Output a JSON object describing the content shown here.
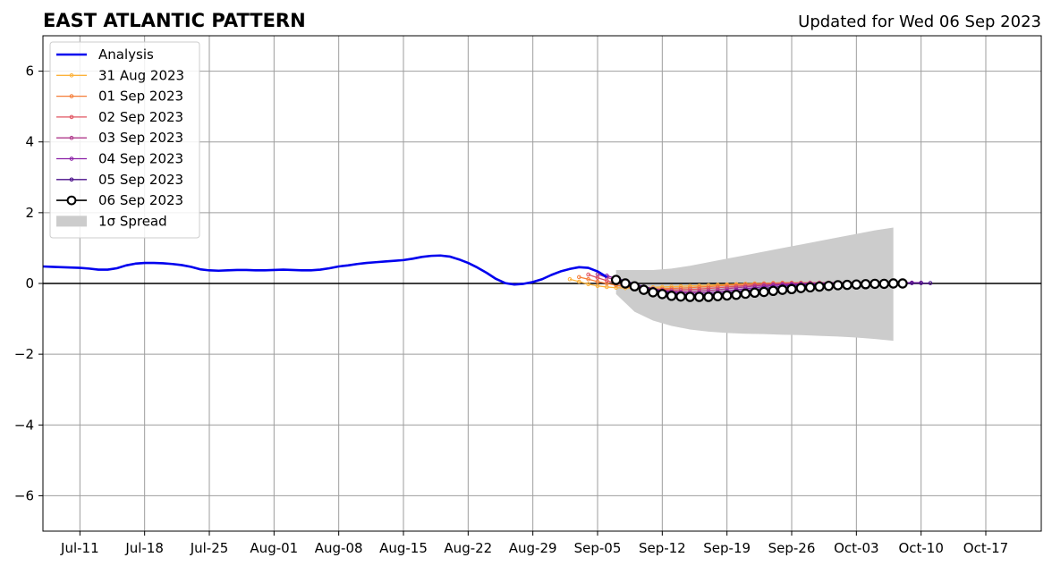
{
  "chart_data": {
    "type": "line",
    "title": "EAST ATLANTIC PATTERN",
    "subtitle": "Updated for Wed 06 Sep 2023",
    "xlabel": "",
    "ylabel": "",
    "x_unit": "date",
    "xlim": [
      "2023-07-07",
      "2023-10-23"
    ],
    "ylim": [
      -7,
      7
    ],
    "x_ticks": [
      "2023-07-11",
      "2023-07-18",
      "2023-07-25",
      "2023-08-01",
      "2023-08-08",
      "2023-08-15",
      "2023-08-22",
      "2023-08-29",
      "2023-09-05",
      "2023-09-12",
      "2023-09-19",
      "2023-09-26",
      "2023-10-03",
      "2023-10-10",
      "2023-10-17"
    ],
    "x_tick_labels": [
      "Jul-11",
      "Jul-18",
      "Jul-25",
      "Aug-01",
      "Aug-08",
      "Aug-15",
      "Aug-22",
      "Aug-29",
      "Sep-05",
      "Sep-12",
      "Sep-19",
      "Sep-26",
      "Oct-03",
      "Oct-10",
      "Oct-17"
    ],
    "y_ticks": [
      -6,
      -4,
      -2,
      0,
      2,
      4,
      6
    ],
    "y_tick_labels": [
      "−6",
      "−4",
      "−2",
      "0",
      "2",
      "4",
      "6"
    ],
    "grid": true,
    "legend_position": "upper-left",
    "analysis": {
      "name": "Analysis",
      "color": "#0000ee",
      "points": [
        [
          "2023-07-07",
          0.48
        ],
        [
          "2023-07-08",
          0.47
        ],
        [
          "2023-07-09",
          0.46
        ],
        [
          "2023-07-10",
          0.45
        ],
        [
          "2023-07-11",
          0.44
        ],
        [
          "2023-07-12",
          0.42
        ],
        [
          "2023-07-13",
          0.39
        ],
        [
          "2023-07-14",
          0.39
        ],
        [
          "2023-07-15",
          0.43
        ],
        [
          "2023-07-16",
          0.51
        ],
        [
          "2023-07-17",
          0.56
        ],
        [
          "2023-07-18",
          0.58
        ],
        [
          "2023-07-19",
          0.58
        ],
        [
          "2023-07-20",
          0.57
        ],
        [
          "2023-07-21",
          0.55
        ],
        [
          "2023-07-22",
          0.52
        ],
        [
          "2023-07-23",
          0.47
        ],
        [
          "2023-07-24",
          0.4
        ],
        [
          "2023-07-25",
          0.37
        ],
        [
          "2023-07-26",
          0.36
        ],
        [
          "2023-07-27",
          0.37
        ],
        [
          "2023-07-28",
          0.38
        ],
        [
          "2023-07-29",
          0.38
        ],
        [
          "2023-07-30",
          0.37
        ],
        [
          "2023-07-31",
          0.37
        ],
        [
          "2023-08-01",
          0.38
        ],
        [
          "2023-08-02",
          0.39
        ],
        [
          "2023-08-03",
          0.38
        ],
        [
          "2023-08-04",
          0.37
        ],
        [
          "2023-08-05",
          0.37
        ],
        [
          "2023-08-06",
          0.39
        ],
        [
          "2023-08-07",
          0.43
        ],
        [
          "2023-08-08",
          0.48
        ],
        [
          "2023-08-09",
          0.51
        ],
        [
          "2023-08-10",
          0.55
        ],
        [
          "2023-08-11",
          0.58
        ],
        [
          "2023-08-12",
          0.6
        ],
        [
          "2023-08-13",
          0.62
        ],
        [
          "2023-08-14",
          0.64
        ],
        [
          "2023-08-15",
          0.66
        ],
        [
          "2023-08-16",
          0.7
        ],
        [
          "2023-08-17",
          0.75
        ],
        [
          "2023-08-18",
          0.78
        ],
        [
          "2023-08-19",
          0.79
        ],
        [
          "2023-08-20",
          0.76
        ],
        [
          "2023-08-21",
          0.68
        ],
        [
          "2023-08-22",
          0.58
        ],
        [
          "2023-08-23",
          0.45
        ],
        [
          "2023-08-24",
          0.3
        ],
        [
          "2023-08-25",
          0.13
        ],
        [
          "2023-08-26",
          0.01
        ],
        [
          "2023-08-27",
          -0.03
        ],
        [
          "2023-08-28",
          -0.01
        ],
        [
          "2023-08-29",
          0.04
        ],
        [
          "2023-08-30",
          0.12
        ],
        [
          "2023-08-31",
          0.24
        ],
        [
          "2023-09-01",
          0.34
        ],
        [
          "2023-09-02",
          0.41
        ],
        [
          "2023-09-03",
          0.46
        ],
        [
          "2023-09-04",
          0.44
        ],
        [
          "2023-09-05",
          0.34
        ],
        [
          "2023-09-06",
          0.18
        ]
      ]
    },
    "series": [
      {
        "name": "31 Aug 2023",
        "color": "#fcb23b",
        "start": "2023-09-02",
        "values": [
          0.12,
          0.05,
          -0.02,
          -0.07,
          -0.1,
          -0.12,
          -0.13,
          -0.13,
          -0.12,
          -0.11,
          -0.1,
          -0.09,
          -0.08,
          -0.07,
          -0.06,
          -0.05,
          -0.04,
          -0.03,
          -0.02,
          -0.01,
          0.0,
          0.0,
          0.01,
          0.01,
          0.02,
          0.02,
          0.02,
          0.02,
          0.02,
          0.02,
          0.02,
          0.02,
          0.02,
          0.02,
          0.02
        ]
      },
      {
        "name": "01 Sep 2023",
        "color": "#f57d37",
        "start": "2023-09-03",
        "values": [
          0.18,
          0.12,
          0.05,
          0.0,
          -0.05,
          -0.09,
          -0.12,
          -0.14,
          -0.15,
          -0.15,
          -0.14,
          -0.13,
          -0.12,
          -0.1,
          -0.09,
          -0.07,
          -0.05,
          -0.04,
          -0.02,
          -0.01,
          0.0,
          0.01,
          0.02,
          0.02,
          0.02,
          0.02,
          0.02,
          0.02,
          0.02,
          0.02,
          0.02,
          0.02,
          0.02,
          0.02,
          0.02
        ]
      },
      {
        "name": "02 Sep 2023",
        "color": "#e0525f",
        "start": "2023-09-04",
        "values": [
          0.25,
          0.16,
          0.08,
          0.01,
          -0.05,
          -0.1,
          -0.14,
          -0.17,
          -0.18,
          -0.18,
          -0.18,
          -0.17,
          -0.16,
          -0.14,
          -0.12,
          -0.1,
          -0.08,
          -0.06,
          -0.04,
          -0.02,
          -0.01,
          0.0,
          0.01,
          0.01,
          0.02,
          0.02,
          0.02,
          0.02,
          0.02,
          0.02,
          0.02,
          0.02,
          0.02,
          0.02,
          0.02
        ]
      },
      {
        "name": "03 Sep 2023",
        "color": "#b03b8c",
        "start": "2023-09-05",
        "values": [
          0.26,
          0.17,
          0.09,
          0.01,
          -0.06,
          -0.12,
          -0.17,
          -0.2,
          -0.22,
          -0.23,
          -0.23,
          -0.22,
          -0.2,
          -0.18,
          -0.15,
          -0.12,
          -0.1,
          -0.07,
          -0.05,
          -0.03,
          -0.02,
          -0.01,
          0.0,
          0.01,
          0.01,
          0.02,
          0.02,
          0.02,
          0.02,
          0.02,
          0.02,
          0.02,
          0.02,
          0.02,
          0.02
        ]
      },
      {
        "name": "04 Sep 2023",
        "color": "#8a1fa6",
        "start": "2023-09-06",
        "values": [
          0.22,
          0.14,
          0.06,
          -0.02,
          -0.09,
          -0.15,
          -0.2,
          -0.24,
          -0.26,
          -0.27,
          -0.27,
          -0.26,
          -0.24,
          -0.21,
          -0.18,
          -0.15,
          -0.12,
          -0.09,
          -0.06,
          -0.04,
          -0.03,
          -0.02,
          -0.01,
          0.0,
          0.01,
          0.01,
          0.01,
          0.02,
          0.02,
          0.02,
          0.02,
          0.02,
          0.02,
          0.02,
          0.02
        ]
      },
      {
        "name": "05 Sep 2023",
        "color": "#4a0f8a",
        "start": "2023-09-07",
        "values": [
          0.15,
          0.07,
          -0.01,
          -0.09,
          -0.16,
          -0.22,
          -0.27,
          -0.3,
          -0.32,
          -0.32,
          -0.31,
          -0.29,
          -0.26,
          -0.23,
          -0.2,
          -0.17,
          -0.14,
          -0.11,
          -0.08,
          -0.06,
          -0.04,
          -0.03,
          -0.02,
          -0.01,
          0.0,
          0.0,
          0.01,
          0.01,
          0.01,
          0.01,
          0.01,
          0.01,
          0.01,
          0.01,
          0.01
        ]
      },
      {
        "name": "06 Sep 2023",
        "color": "#000000",
        "start": "2023-09-07",
        "values": [
          0.1,
          0.0,
          -0.08,
          -0.18,
          -0.25,
          -0.3,
          -0.35,
          -0.37,
          -0.38,
          -0.38,
          -0.38,
          -0.36,
          -0.34,
          -0.32,
          -0.29,
          -0.26,
          -0.24,
          -0.21,
          -0.18,
          -0.16,
          -0.13,
          -0.11,
          -0.09,
          -0.07,
          -0.05,
          -0.04,
          -0.03,
          -0.02,
          -0.01,
          -0.01,
          0.0,
          0.0
        ]
      }
    ],
    "spread": {
      "name": "1σ Spread",
      "color": "#cccccc",
      "points": [
        [
          "2023-09-07",
          0.38,
          -0.3
        ],
        [
          "2023-09-09",
          0.38,
          -0.8
        ],
        [
          "2023-09-11",
          0.38,
          -1.05
        ],
        [
          "2023-09-13",
          0.42,
          -1.2
        ],
        [
          "2023-09-15",
          0.5,
          -1.3
        ],
        [
          "2023-09-17",
          0.6,
          -1.36
        ],
        [
          "2023-09-19",
          0.7,
          -1.4
        ],
        [
          "2023-09-21",
          0.8,
          -1.42
        ],
        [
          "2023-09-23",
          0.9,
          -1.43
        ],
        [
          "2023-09-25",
          1.0,
          -1.45
        ],
        [
          "2023-09-27",
          1.1,
          -1.46
        ],
        [
          "2023-09-29",
          1.2,
          -1.48
        ],
        [
          "2023-10-01",
          1.3,
          -1.5
        ],
        [
          "2023-10-03",
          1.4,
          -1.53
        ],
        [
          "2023-10-05",
          1.5,
          -1.57
        ],
        [
          "2023-10-07",
          1.58,
          -1.62
        ]
      ]
    }
  }
}
